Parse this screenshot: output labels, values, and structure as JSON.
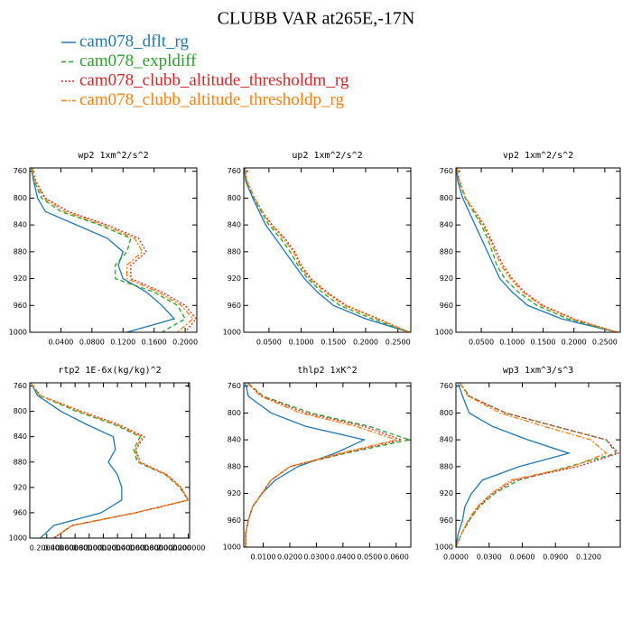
{
  "title": "CLUBB VAR at265E,-17N",
  "chart_data": [
    {
      "type": "line",
      "title": "wp2  1xm^2/s^2",
      "y": [
        756,
        775,
        800,
        820,
        840,
        860,
        880,
        900,
        920,
        940,
        960,
        980,
        1000
      ],
      "ylim": [
        1000,
        755
      ],
      "yticks": [
        760,
        800,
        840,
        880,
        920,
        960,
        1000
      ],
      "xlim": [
        0,
        0.215
      ],
      "xticks": [
        {
          "value": 0.04,
          "label": "0.0400"
        },
        {
          "value": 0.08,
          "label": "0.0800"
        },
        {
          "value": 0.12,
          "label": "0.1200"
        },
        {
          "value": 0.16,
          "label": "0.1600"
        },
        {
          "value": 0.2,
          "label": "0.2000"
        }
      ],
      "series": [
        {
          "name": "cam078_dflt_rg",
          "color": "#1f77b4",
          "values": [
            0.002,
            0.005,
            0.01,
            0.02,
            0.06,
            0.1,
            0.12,
            0.114,
            0.12,
            0.15,
            0.17,
            0.186,
            0.125
          ]
        },
        {
          "name": "cam078_expldiff",
          "color": "#2ca02c",
          "values": [
            0.002,
            0.006,
            0.015,
            0.04,
            0.09,
            0.13,
            0.125,
            0.11,
            0.11,
            0.16,
            0.19,
            0.2,
            0.17
          ]
        },
        {
          "name": "cam078_clubb_altitude_thresholdm_rg",
          "color": "#d62728",
          "values": [
            0.003,
            0.008,
            0.02,
            0.05,
            0.1,
            0.14,
            0.15,
            0.13,
            0.13,
            0.17,
            0.2,
            0.214,
            0.2
          ]
        },
        {
          "name": "cam078_clubb_altitude_thresholdp_rg",
          "color": "#ff7f0e",
          "values": [
            0.003,
            0.007,
            0.018,
            0.045,
            0.095,
            0.135,
            0.145,
            0.125,
            0.125,
            0.165,
            0.195,
            0.21,
            0.19
          ]
        }
      ]
    },
    {
      "type": "line",
      "title": "up2  1xm^2/s^2",
      "y": [
        756,
        775,
        800,
        820,
        840,
        860,
        880,
        900,
        920,
        940,
        960,
        980,
        1000
      ],
      "ylim": [
        1000,
        755
      ],
      "yticks": [
        760,
        800,
        840,
        880,
        920,
        960,
        1000
      ],
      "xlim": [
        0.011,
        0.27
      ],
      "xticks": [
        {
          "value": 0.05,
          "label": "0.0500"
        },
        {
          "value": 0.1,
          "label": "0.1000"
        },
        {
          "value": 0.15,
          "label": "0.1500"
        },
        {
          "value": 0.2,
          "label": "0.2000"
        },
        {
          "value": 0.25,
          "label": "0.2500"
        }
      ],
      "series": [
        {
          "color": "#1f77b4",
          "values": [
            0.012,
            0.014,
            0.025,
            0.035,
            0.045,
            0.06,
            0.075,
            0.09,
            0.105,
            0.125,
            0.15,
            0.2,
            0.268
          ]
        },
        {
          "color": "#2ca02c",
          "values": [
            0.013,
            0.015,
            0.027,
            0.038,
            0.05,
            0.068,
            0.083,
            0.095,
            0.11,
            0.132,
            0.16,
            0.21,
            0.268
          ]
        },
        {
          "color": "#d62728",
          "values": [
            0.013,
            0.016,
            0.028,
            0.04,
            0.055,
            0.075,
            0.09,
            0.1,
            0.115,
            0.14,
            0.17,
            0.22,
            0.268
          ]
        },
        {
          "color": "#ff7f0e",
          "values": [
            0.013,
            0.016,
            0.028,
            0.04,
            0.053,
            0.072,
            0.088,
            0.098,
            0.113,
            0.137,
            0.167,
            0.217,
            0.268
          ]
        }
      ]
    },
    {
      "type": "line",
      "title": "vp2  1xm^2/s^2",
      "y": [
        756,
        775,
        800,
        820,
        840,
        860,
        880,
        900,
        920,
        940,
        960,
        980,
        1000
      ],
      "ylim": [
        1000,
        755
      ],
      "yticks": [
        760,
        800,
        840,
        880,
        920,
        960,
        1000
      ],
      "xlim": [
        0.009,
        0.275
      ],
      "xticks": [
        {
          "value": 0.05,
          "label": "0.0500"
        },
        {
          "value": 0.1,
          "label": "0.1000"
        },
        {
          "value": 0.15,
          "label": "0.1500"
        },
        {
          "value": 0.2,
          "label": "0.2000"
        },
        {
          "value": 0.25,
          "label": "0.2500"
        }
      ],
      "series": [
        {
          "color": "#1f77b4",
          "values": [
            0.01,
            0.012,
            0.02,
            0.03,
            0.04,
            0.05,
            0.06,
            0.07,
            0.08,
            0.1,
            0.125,
            0.18,
            0.27
          ]
        },
        {
          "color": "#2ca02c",
          "values": [
            0.01,
            0.014,
            0.024,
            0.037,
            0.05,
            0.06,
            0.068,
            0.075,
            0.088,
            0.11,
            0.14,
            0.19,
            0.27
          ]
        },
        {
          "color": "#d62728",
          "values": [
            0.011,
            0.015,
            0.025,
            0.04,
            0.055,
            0.065,
            0.075,
            0.085,
            0.1,
            0.12,
            0.15,
            0.2,
            0.27
          ]
        },
        {
          "color": "#ff7f0e",
          "values": [
            0.011,
            0.015,
            0.025,
            0.039,
            0.053,
            0.063,
            0.072,
            0.082,
            0.097,
            0.117,
            0.147,
            0.197,
            0.27
          ]
        }
      ]
    },
    {
      "type": "line",
      "title": "rtp2  1E-6x(kg/kg)^2",
      "y": [
        756,
        775,
        800,
        820,
        840,
        860,
        880,
        900,
        920,
        940,
        960,
        980,
        1000
      ],
      "ylim": [
        1000,
        755
      ],
      "yticks": [
        760,
        800,
        840,
        880,
        920,
        960,
        1000
      ],
      "xlim": [
        -0.04,
        2.22
      ],
      "xticks": [
        {
          "value": 0.2,
          "label": "0.200000"
        },
        {
          "value": 0.4,
          "label": "0.400000"
        },
        {
          "value": 0.6,
          "label": "0.600000"
        },
        {
          "value": 0.8,
          "label": "0.800000"
        },
        {
          "value": 1.0,
          "label": "1.000000"
        },
        {
          "value": 1.2,
          "label": "1.200000"
        },
        {
          "value": 1.4,
          "label": "1.400000"
        },
        {
          "value": 1.6,
          "label": "1.600000"
        },
        {
          "value": 1.8,
          "label": "1.800000"
        },
        {
          "value": 2.0,
          "label": "2.000000"
        },
        {
          "value": 2.2,
          "label": "2.200000"
        }
      ],
      "series": [
        {
          "color": "#1f77b4",
          "values": [
            -0.02,
            0.07,
            0.4,
            0.75,
            1.14,
            1.17,
            1.07,
            1.2,
            1.26,
            1.26,
            0.97,
            0.3,
            0.11
          ]
        },
        {
          "color": "#2ca02c",
          "values": [
            -0.02,
            0.1,
            0.62,
            1.14,
            1.52,
            1.43,
            1.48,
            1.88,
            2.08,
            2.2,
            1.46,
            0.56,
            0.3
          ]
        },
        {
          "color": "#d62728",
          "values": [
            -0.02,
            0.11,
            0.69,
            1.2,
            1.58,
            1.46,
            1.52,
            1.9,
            2.1,
            2.2,
            1.46,
            0.56,
            0.3
          ]
        },
        {
          "color": "#ff7f0e",
          "values": [
            -0.02,
            0.1,
            0.66,
            1.17,
            1.55,
            1.45,
            1.5,
            1.89,
            2.09,
            2.2,
            1.46,
            0.56,
            0.3
          ]
        }
      ]
    },
    {
      "type": "line",
      "title": "thlp2  1xK^2",
      "y": [
        756,
        775,
        800,
        820,
        840,
        860,
        880,
        900,
        920,
        940,
        960,
        980,
        1000
      ],
      "ylim": [
        1000,
        755
      ],
      "yticks": [
        760,
        800,
        840,
        880,
        920,
        960,
        1000
      ],
      "xlim": [
        0.0027,
        0.0655
      ],
      "xticks": [
        {
          "value": 0.01,
          "label": "0.0100"
        },
        {
          "value": 0.02,
          "label": "0.0200"
        },
        {
          "value": 0.03,
          "label": "0.0300"
        },
        {
          "value": 0.04,
          "label": "0.0400"
        },
        {
          "value": 0.05,
          "label": "0.0500"
        },
        {
          "value": 0.06,
          "label": "0.0600"
        }
      ],
      "series": [
        {
          "color": "#1f77b4",
          "values": [
            0.0034,
            0.0044,
            0.013,
            0.026,
            0.048,
            0.037,
            0.023,
            0.0146,
            0.0095,
            0.006,
            0.0044,
            0.0034,
            0.0034
          ]
        },
        {
          "color": "#2ca02c",
          "values": [
            0.0044,
            0.01,
            0.028,
            0.05,
            0.065,
            0.041,
            0.02,
            0.013,
            0.0095,
            0.006,
            0.0044,
            0.0034,
            0.0034
          ]
        },
        {
          "color": "#d62728",
          "values": [
            0.0044,
            0.0095,
            0.026,
            0.048,
            0.062,
            0.04,
            0.02,
            0.013,
            0.0095,
            0.006,
            0.0044,
            0.0034,
            0.0034
          ]
        },
        {
          "color": "#ff7f0e",
          "values": [
            0.0042,
            0.009,
            0.024,
            0.045,
            0.06,
            0.039,
            0.02,
            0.013,
            0.0095,
            0.006,
            0.0044,
            0.0034,
            0.0034
          ]
        }
      ]
    },
    {
      "type": "line",
      "title": "wp3  1xm^3/s^3",
      "y": [
        756,
        775,
        800,
        820,
        840,
        860,
        880,
        900,
        920,
        940,
        960,
        980,
        1000
      ],
      "ylim": [
        1000,
        755
      ],
      "yticks": [
        760,
        800,
        840,
        880,
        920,
        960,
        1000
      ],
      "xlim": [
        0,
        0.1486
      ],
      "xticks": [
        {
          "value": 0,
          "label": "0.0000"
        },
        {
          "value": 0.03,
          "label": "0.0300"
        },
        {
          "value": 0.06,
          "label": "0.0600"
        },
        {
          "value": 0.09,
          "label": "0.0900"
        },
        {
          "value": 0.12,
          "label": "0.1200"
        }
      ],
      "series": [
        {
          "color": "#1f77b4",
          "values": [
            0.002,
            0.006,
            0.012,
            0.033,
            0.065,
            0.102,
            0.057,
            0.024,
            0.014,
            0.008,
            0.006,
            0.002,
            0
          ]
        },
        {
          "color": "#2ca02c",
          "values": [
            0.004,
            0.012,
            0.045,
            0.09,
            0.136,
            0.145,
            0.102,
            0.057,
            0.035,
            0.021,
            0.012,
            0.005,
            0
          ]
        },
        {
          "color": "#d62728",
          "values": [
            0.004,
            0.012,
            0.045,
            0.09,
            0.136,
            0.147,
            0.11,
            0.053,
            0.033,
            0.02,
            0.012,
            0.005,
            0
          ]
        },
        {
          "color": "#ff7f0e",
          "values": [
            0.004,
            0.011,
            0.04,
            0.08,
            0.122,
            0.136,
            0.105,
            0.05,
            0.032,
            0.019,
            0.011,
            0.005,
            0
          ]
        }
      ]
    }
  ]
}
